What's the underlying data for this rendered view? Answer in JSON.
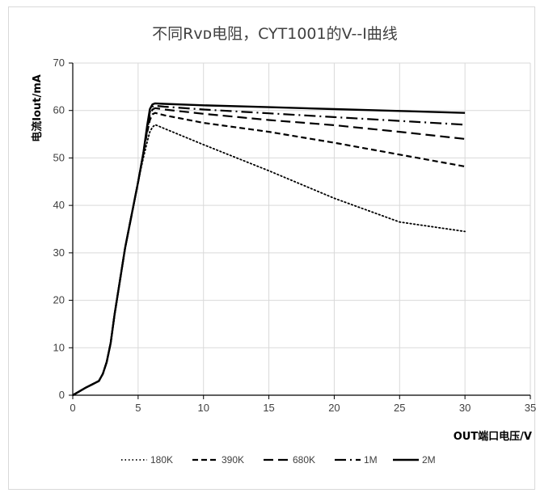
{
  "chart_data": {
    "type": "line",
    "title": "不同Rᴠᴅ电阻，CYT1001的V--I曲线",
    "xlabel": "OUT端口电压/V",
    "ylabel": "电流Iout/mA",
    "xlim": [
      0,
      35
    ],
    "ylim": [
      0,
      70
    ],
    "xticks": [
      0,
      5,
      10,
      15,
      20,
      25,
      30,
      35
    ],
    "yticks": [
      0,
      10,
      20,
      30,
      40,
      50,
      60,
      70
    ],
    "grid": true,
    "legend_position": "bottom",
    "series": [
      {
        "name": "180K",
        "style": "dotted",
        "x": [
          0,
          0.5,
          1,
          1.5,
          2,
          2.3,
          2.6,
          2.9,
          3.2,
          3.6,
          4,
          4.5,
          5,
          5.4,
          5.7,
          5.9,
          6.1,
          6.3,
          7,
          10,
          15,
          20,
          25,
          30
        ],
        "y": [
          0,
          0.8,
          1.6,
          2.3,
          3,
          4.5,
          7,
          11,
          17,
          24,
          31,
          38,
          45,
          50,
          53.5,
          55.5,
          56.5,
          57,
          56.2,
          52.8,
          47.3,
          41.5,
          36.5,
          34.5
        ]
      },
      {
        "name": "390K",
        "style": "dashed",
        "x": [
          0,
          0.5,
          1,
          1.5,
          2,
          2.3,
          2.6,
          2.9,
          3.2,
          3.6,
          4,
          4.5,
          5,
          5.4,
          5.7,
          5.9,
          6.1,
          6.3,
          7,
          10,
          15,
          20,
          25,
          30
        ],
        "y": [
          0,
          0.8,
          1.6,
          2.3,
          3,
          4.5,
          7,
          11,
          17,
          24,
          31,
          38,
          45,
          51,
          55.5,
          58,
          59.2,
          59.5,
          59,
          57.4,
          55.5,
          53.2,
          50.7,
          48.2
        ]
      },
      {
        "name": "680K",
        "style": "long-dash",
        "x": [
          0,
          0.5,
          1,
          1.5,
          2,
          2.3,
          2.6,
          2.9,
          3.2,
          3.6,
          4,
          4.5,
          5,
          5.4,
          5.7,
          5.9,
          6.1,
          6.3,
          7,
          10,
          15,
          20,
          25,
          30
        ],
        "y": [
          0,
          0.8,
          1.6,
          2.3,
          3,
          4.5,
          7,
          11,
          17,
          24,
          31,
          38,
          45,
          51,
          56,
          59,
          60.2,
          60.5,
          60.2,
          59.3,
          58,
          56.9,
          55.5,
          54
        ]
      },
      {
        "name": "1M",
        "style": "dash-dot",
        "x": [
          0,
          0.5,
          1,
          1.5,
          2,
          2.3,
          2.6,
          2.9,
          3.2,
          3.6,
          4,
          4.5,
          5,
          5.4,
          5.7,
          5.9,
          6.1,
          6.3,
          7,
          10,
          15,
          20,
          25,
          30
        ],
        "y": [
          0,
          0.8,
          1.6,
          2.3,
          3,
          4.5,
          7,
          11,
          17,
          24,
          31,
          38,
          45,
          51,
          56.5,
          59.7,
          60.8,
          61,
          60.8,
          60.2,
          59.4,
          58.6,
          57.8,
          57
        ]
      },
      {
        "name": "2M",
        "style": "solid",
        "x": [
          0,
          0.5,
          1,
          1.5,
          2,
          2.3,
          2.6,
          2.9,
          3.2,
          3.6,
          4,
          4.5,
          5,
          5.4,
          5.7,
          5.9,
          6.1,
          6.3,
          7,
          10,
          15,
          20,
          25,
          30
        ],
        "y": [
          0,
          0.8,
          1.6,
          2.3,
          3,
          4.5,
          7,
          11,
          17,
          24,
          31,
          38,
          45,
          51,
          57,
          60.3,
          61.3,
          61.5,
          61.4,
          61.1,
          60.7,
          60.3,
          59.9,
          59.5
        ]
      }
    ]
  }
}
